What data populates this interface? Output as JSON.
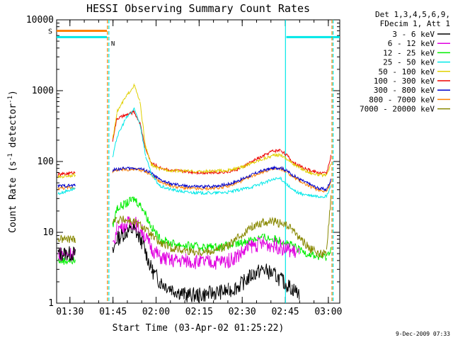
{
  "chart_data": {
    "type": "line",
    "title": "HESSI Observing Summary Count Rates",
    "xlabel": "Start Time (03-Apr-02 01:25:22)",
    "ylabel_main": "Count Rate (s",
    "ylabel_sup1": "-1",
    "ylabel_mid": " detector",
    "ylabel_sup2": "-1",
    "ylabel_end": ")",
    "y_scale": "log",
    "ylim": [
      1,
      10000
    ],
    "xlim_minutes": [
      0,
      98.6
    ],
    "x_ticks": [
      {
        "label": "01:30",
        "minutes": 4.63
      },
      {
        "label": "01:45",
        "minutes": 19.63
      },
      {
        "label": "02:00",
        "minutes": 34.63
      },
      {
        "label": "02:15",
        "minutes": 49.63
      },
      {
        "label": "02:30",
        "minutes": 64.63
      },
      {
        "label": "02:45",
        "minutes": 79.63
      },
      {
        "label": "03:00",
        "minutes": 94.63
      }
    ],
    "y_ticks": [
      {
        "label": "1",
        "value": 1
      },
      {
        "label": "10",
        "value": 10
      },
      {
        "label": "100",
        "value": 100
      },
      {
        "label": "1000",
        "value": 1000
      },
      {
        "label": "10000",
        "value": 10000
      }
    ],
    "legend_header": [
      "Det 1,3,4,5,6,9,",
      "FDecim 1, Att 1"
    ],
    "legend_position": "right",
    "series": [
      {
        "name": "3 - 6 keV",
        "color": "#000000",
        "x": [
          0.5,
          6.5,
          19.5,
          21,
          24,
          27,
          30,
          33,
          36,
          40,
          45,
          50,
          55,
          60,
          64,
          68,
          72,
          76,
          79,
          82,
          84.5
        ],
        "values": [
          5,
          5,
          5,
          8,
          10,
          11,
          7,
          3,
          2,
          1.6,
          1.3,
          1.3,
          1.4,
          1.5,
          1.8,
          2.5,
          3,
          2.5,
          2.0,
          1.6,
          1.4
        ]
      },
      {
        "name": "6 - 12 keV",
        "color": "#e000e0",
        "x": [
          0.5,
          6.5,
          19.5,
          21,
          24,
          27,
          30,
          33,
          36,
          40,
          45,
          50,
          55,
          60,
          64,
          68,
          72,
          76,
          79,
          82,
          84.5
        ],
        "values": [
          5,
          5,
          6,
          11,
          13,
          14,
          10,
          6,
          4.5,
          4,
          4,
          3.8,
          3.8,
          4,
          5,
          6.5,
          7,
          6.5,
          6,
          5.5,
          5
        ]
      },
      {
        "name": "12 - 25 keV",
        "color": "#00ee00",
        "x": [
          0.5,
          6.5,
          19.5,
          21,
          24,
          27,
          30,
          33,
          36,
          40,
          45,
          50,
          55,
          60,
          64,
          68,
          72,
          76,
          79,
          82,
          85,
          88,
          91,
          94,
          95.5
        ],
        "values": [
          4,
          4,
          12,
          22,
          25,
          30,
          22,
          12,
          8,
          7,
          6.5,
          6.2,
          6.2,
          6.5,
          7,
          8,
          8.5,
          8,
          7.5,
          6.5,
          5.5,
          5,
          4.5,
          4.5,
          6
        ]
      },
      {
        "name": "25 - 50 keV",
        "color": "#00e8e8",
        "x": [
          0.5,
          6.5,
          19.5,
          21,
          24,
          27,
          29,
          31,
          33,
          36,
          40,
          45,
          50,
          55,
          60,
          64,
          68,
          72,
          75,
          78,
          80,
          82,
          85,
          88,
          91,
          94,
          95.5
        ],
        "values": [
          35,
          42,
          110,
          220,
          400,
          550,
          350,
          120,
          65,
          45,
          40,
          37,
          36,
          36,
          37,
          40,
          44,
          50,
          55,
          58,
          48,
          40,
          35,
          33,
          32,
          32,
          45
        ]
      },
      {
        "name": "50 - 100 keV",
        "color": "#e0d000",
        "x": [
          0.5,
          6.5,
          19.5,
          21,
          24,
          27,
          29,
          31,
          33,
          36,
          40,
          45,
          50,
          55,
          60,
          64,
          68,
          72,
          75,
          78,
          80,
          82,
          85,
          88,
          91,
          94,
          95.5
        ],
        "values": [
          60,
          65,
          200,
          500,
          800,
          1200,
          700,
          160,
          90,
          78,
          75,
          73,
          72,
          73,
          75,
          82,
          95,
          110,
          120,
          125,
          110,
          95,
          80,
          70,
          65,
          63,
          90
        ]
      },
      {
        "name": "100 - 300 keV",
        "color": "#ee0000",
        "x": [
          0.5,
          6.5,
          19.5,
          21,
          24,
          27,
          29,
          31,
          33,
          36,
          40,
          45,
          50,
          55,
          60,
          64,
          68,
          72,
          75,
          78,
          80,
          82,
          85,
          88,
          91,
          94,
          95.5
        ],
        "values": [
          65,
          70,
          200,
          400,
          450,
          500,
          350,
          150,
          95,
          82,
          75,
          72,
          70,
          70,
          72,
          80,
          100,
          120,
          140,
          145,
          125,
          100,
          85,
          75,
          70,
          68,
          120
        ]
      },
      {
        "name": "300 - 800 keV",
        "color": "#0000cc",
        "x": [
          0.5,
          6.5,
          19.5,
          21,
          24,
          27,
          29,
          31,
          33,
          36,
          40,
          45,
          50,
          55,
          60,
          64,
          68,
          72,
          75,
          78,
          80,
          82,
          85,
          88,
          91,
          94,
          95.5
        ],
        "values": [
          45,
          46,
          75,
          78,
          80,
          80,
          79,
          75,
          68,
          55,
          48,
          45,
          44,
          45,
          48,
          55,
          65,
          75,
          80,
          82,
          75,
          65,
          55,
          48,
          42,
          40,
          55
        ]
      },
      {
        "name": "800 - 7000 keV",
        "color": "#ff8000",
        "x": [
          0.5,
          6.5,
          19.5,
          21,
          24,
          27,
          29,
          31,
          33,
          36,
          40,
          45,
          50,
          55,
          60,
          64,
          68,
          72,
          75,
          78,
          80,
          82,
          85,
          88,
          91,
          94,
          95.5
        ],
        "values": [
          42,
          43,
          72,
          75,
          77,
          77,
          76,
          72,
          65,
          52,
          45,
          42,
          41,
          42,
          45,
          52,
          62,
          72,
          77,
          79,
          72,
          62,
          52,
          45,
          40,
          38,
          50
        ]
      },
      {
        "name": "7000 - 20000 keV",
        "color": "#888800",
        "x": [
          0.5,
          6.5,
          19.5,
          21,
          24,
          27,
          30,
          33,
          36,
          40,
          45,
          50,
          55,
          60,
          64,
          68,
          72,
          76,
          79,
          82,
          85,
          88,
          91,
          94,
          95.5
        ],
        "values": [
          8,
          8,
          15,
          15,
          15,
          14,
          12,
          9,
          7,
          6,
          5.5,
          5.3,
          5.5,
          6.5,
          9,
          12,
          14,
          14,
          13,
          11,
          8,
          6,
          5,
          5,
          30
        ]
      }
    ],
    "status_bars": [
      {
        "label": "S",
        "color": "#ff8000",
        "value": 7000,
        "segments": [
          [
            0,
            17.5
          ]
        ]
      },
      {
        "label": "N",
        "color": "#00e8e8",
        "value": 5700,
        "segments": [
          [
            0,
            17.5
          ],
          [
            80,
            98.6
          ]
        ]
      }
    ],
    "vertical_markers": [
      {
        "minutes": 17.7,
        "color": "#ff8000",
        "style": "dashed"
      },
      {
        "minutes": 18.2,
        "color": "#00e8e8",
        "style": "dashed"
      },
      {
        "minutes": 79.7,
        "color": "#00e8e8",
        "style": "solid"
      },
      {
        "minutes": 95.9,
        "color": "#ff8000",
        "style": "dashed"
      },
      {
        "minutes": 96.3,
        "color": "#00e8e8",
        "style": "dashed"
      }
    ]
  },
  "footer_date": "9-Dec-2009 07:33"
}
